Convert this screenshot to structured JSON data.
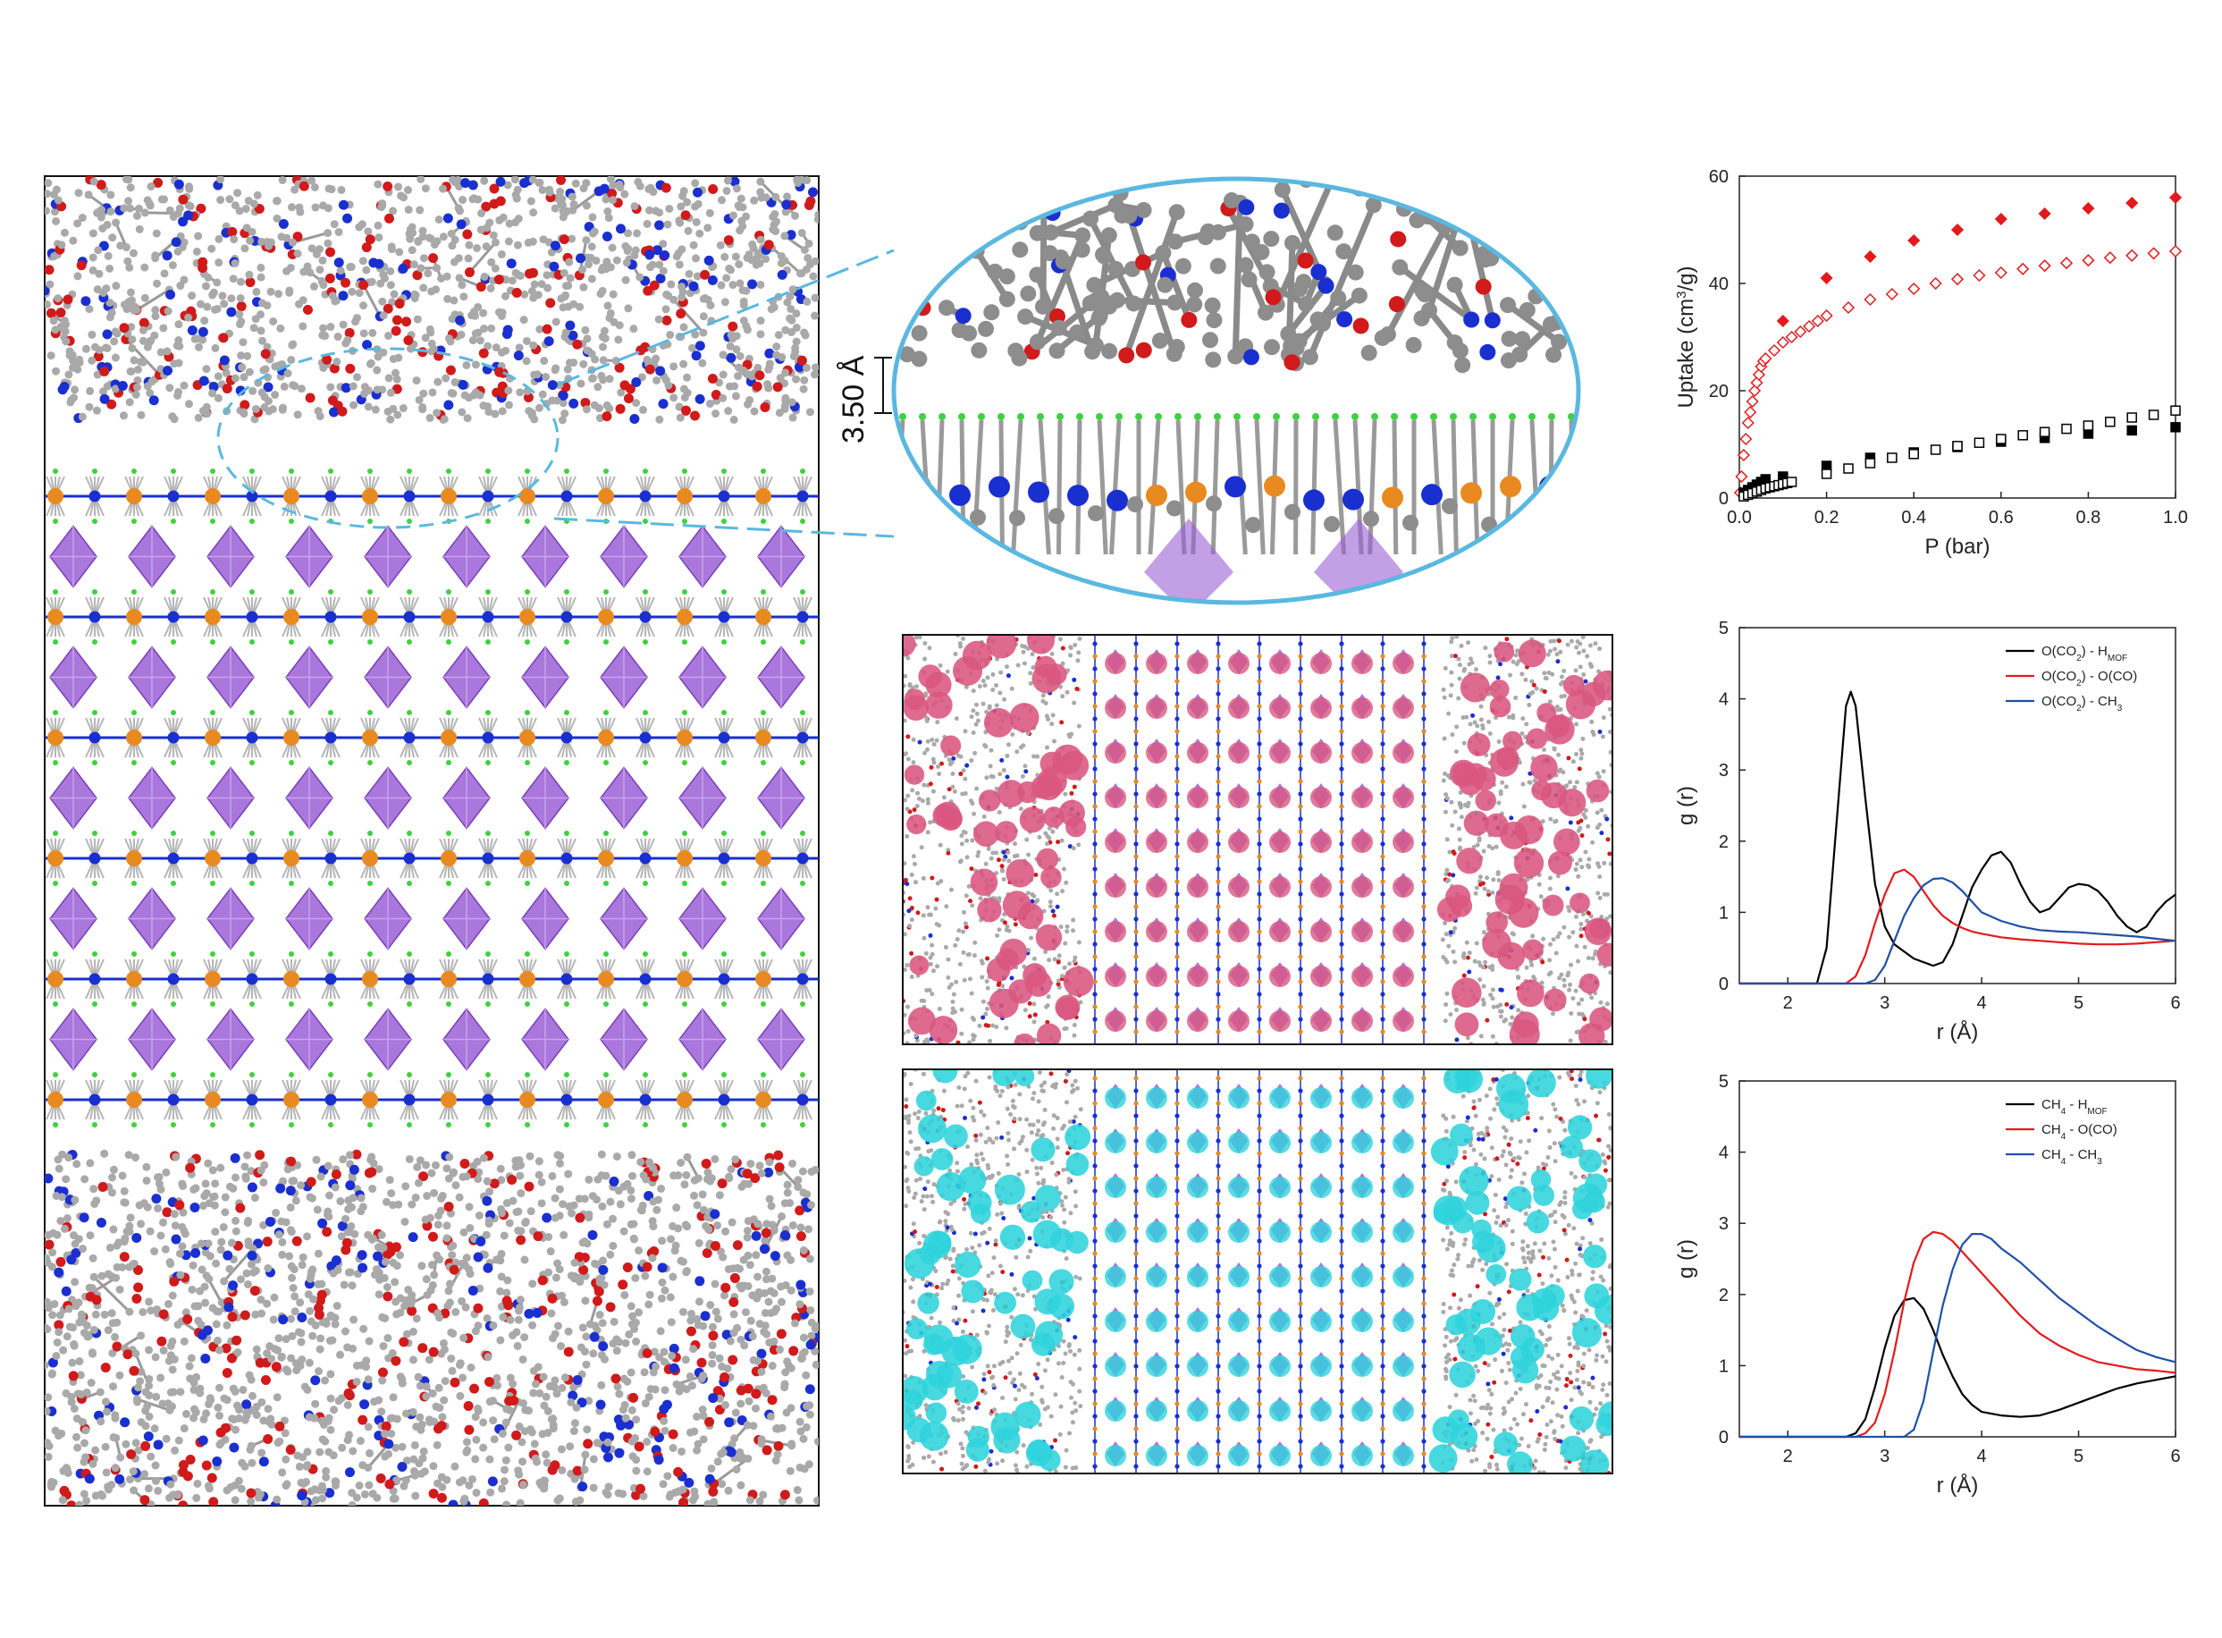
{
  "annotation": {
    "distance_label": "3.50 Å"
  },
  "colors": {
    "carbon": "#a9a9a9",
    "oxygen": "#d11a1a",
    "nitrogen": "#1a2fd0",
    "metal": "#e88a1f",
    "halide": "#3fd13f",
    "octahedron": "#9b5fd6",
    "co2_density": "#d9577f",
    "ch4_density": "#2fd3dc",
    "highlight": "#5ab8e0"
  },
  "chart_data": [
    {
      "type": "scatter",
      "title": "",
      "xlabel": "P (bar)",
      "ylabel": "Uptake (cm³/g)",
      "ylabel_main": "Uptake (cm",
      "ylabel_sup": "3",
      "ylabel_end": "/g)",
      "xlim": [
        0,
        1.0
      ],
      "ylim": [
        0,
        60
      ],
      "xticks": [
        "0.0",
        "0.2",
        "0.4",
        "0.6",
        "0.8",
        "1.0"
      ],
      "yticks": [
        "0",
        "20",
        "40",
        "60"
      ],
      "series": [
        {
          "marker": "filled-diamond",
          "color": "#e31a1c",
          "x": [
            0.1,
            0.2,
            0.3,
            0.4,
            0.5,
            0.6,
            0.7,
            0.8,
            0.9,
            1.0
          ],
          "y": [
            33,
            41,
            45,
            48,
            50,
            52,
            53,
            54,
            55,
            56
          ]
        },
        {
          "marker": "open-diamond",
          "color": "#e31a1c",
          "x": [
            0.002,
            0.005,
            0.01,
            0.015,
            0.02,
            0.025,
            0.03,
            0.035,
            0.04,
            0.045,
            0.05,
            0.055,
            0.06,
            0.08,
            0.1,
            0.12,
            0.14,
            0.16,
            0.18,
            0.2,
            0.25,
            0.3,
            0.35,
            0.4,
            0.45,
            0.5,
            0.55,
            0.6,
            0.65,
            0.7,
            0.75,
            0.8,
            0.85,
            0.9,
            0.95,
            1.0
          ],
          "y": [
            1,
            4,
            8,
            11,
            14,
            16,
            18,
            20,
            21.5,
            23,
            24.5,
            25.5,
            26,
            27.5,
            29,
            30,
            31,
            32,
            33,
            34,
            35.5,
            37,
            38,
            39,
            40,
            40.8,
            41.5,
            42,
            42.7,
            43.3,
            43.8,
            44.3,
            44.8,
            45.2,
            45.6,
            46
          ]
        },
        {
          "marker": "filled-square",
          "color": "#000000",
          "x": [
            0.01,
            0.02,
            0.03,
            0.04,
            0.05,
            0.06,
            0.1,
            0.2,
            0.3,
            0.4,
            0.5,
            0.6,
            0.7,
            0.8,
            0.9,
            1.0
          ],
          "y": [
            1,
            1.5,
            2,
            2.5,
            3,
            3.5,
            4,
            6,
            7.5,
            8.5,
            9.5,
            10.5,
            11.2,
            12,
            12.6,
            13.2
          ]
        },
        {
          "marker": "open-square",
          "color": "#000000",
          "x": [
            0.01,
            0.02,
            0.03,
            0.04,
            0.05,
            0.06,
            0.07,
            0.08,
            0.09,
            0.1,
            0.11,
            0.12,
            0.2,
            0.25,
            0.3,
            0.35,
            0.4,
            0.45,
            0.5,
            0.55,
            0.6,
            0.65,
            0.7,
            0.75,
            0.8,
            0.85,
            0.9,
            0.95,
            1.0
          ],
          "y": [
            0.3,
            0.6,
            0.9,
            1.2,
            1.5,
            1.8,
            2.0,
            2.2,
            2.4,
            2.6,
            2.8,
            3.0,
            4.5,
            5.5,
            6.5,
            7.5,
            8.2,
            9,
            9.7,
            10.3,
            11,
            11.7,
            12.3,
            12.9,
            13.5,
            14.2,
            15,
            15.5,
            16.3
          ]
        }
      ]
    },
    {
      "type": "line",
      "xlabel": "r (Å)",
      "ylabel": "g (r)",
      "xlim": [
        1.5,
        6
      ],
      "ylim": [
        0,
        5
      ],
      "xticks": [
        "2",
        "3",
        "4",
        "5",
        "6"
      ],
      "yticks": [
        "0",
        "1",
        "2",
        "3",
        "4",
        "5"
      ],
      "series": [
        {
          "name": "O(CO2) - HMOF",
          "label_main": "O(CO",
          "label_sub": "2",
          "label_mid": ") - H",
          "label_sub2": "MOF",
          "label_end": "",
          "color": "#000000",
          "x": [
            1.5,
            2.3,
            2.4,
            2.5,
            2.6,
            2.65,
            2.7,
            2.8,
            2.9,
            3.0,
            3.1,
            3.2,
            3.3,
            3.4,
            3.5,
            3.6,
            3.7,
            3.8,
            3.9,
            4.0,
            4.1,
            4.2,
            4.3,
            4.4,
            4.5,
            4.6,
            4.7,
            4.8,
            4.9,
            5.0,
            5.1,
            5.2,
            5.3,
            5.4,
            5.5,
            5.6,
            5.7,
            5.8,
            5.9,
            6.0
          ],
          "y": [
            0,
            0,
            0.5,
            2.2,
            3.9,
            4.1,
            3.9,
            2.6,
            1.4,
            0.8,
            0.55,
            0.45,
            0.35,
            0.3,
            0.25,
            0.3,
            0.55,
            0.95,
            1.35,
            1.6,
            1.8,
            1.85,
            1.7,
            1.4,
            1.15,
            1.0,
            1.05,
            1.2,
            1.35,
            1.4,
            1.38,
            1.3,
            1.15,
            0.95,
            0.8,
            0.72,
            0.8,
            1.0,
            1.15,
            1.25
          ]
        },
        {
          "name": "O(CO2) - O(CO)",
          "label_main": "O(CO",
          "label_sub": "2",
          "label_mid": ") - O(CO)",
          "label_sub2": "",
          "label_end": "",
          "color": "#e31a1c",
          "x": [
            1.5,
            2.6,
            2.7,
            2.8,
            2.9,
            3.0,
            3.1,
            3.2,
            3.3,
            3.4,
            3.5,
            3.6,
            3.7,
            3.8,
            3.9,
            4.0,
            4.2,
            4.4,
            4.6,
            4.8,
            5.0,
            5.2,
            5.4,
            5.6,
            5.8,
            6.0
          ],
          "y": [
            0,
            0,
            0.1,
            0.4,
            0.85,
            1.25,
            1.55,
            1.6,
            1.5,
            1.3,
            1.1,
            0.95,
            0.85,
            0.78,
            0.73,
            0.7,
            0.65,
            0.62,
            0.6,
            0.58,
            0.56,
            0.55,
            0.55,
            0.56,
            0.58,
            0.6
          ]
        },
        {
          "name": "O(CO2) - CH3",
          "label_main": "O(CO",
          "label_sub": "2",
          "label_mid": ") - CH",
          "label_sub2": "3",
          "label_end": "",
          "color": "#1f4fa8",
          "x": [
            1.5,
            2.8,
            2.9,
            3.0,
            3.1,
            3.2,
            3.3,
            3.4,
            3.5,
            3.6,
            3.7,
            3.8,
            3.9,
            4.0,
            4.2,
            4.4,
            4.6,
            4.8,
            5.0,
            5.2,
            5.4,
            5.6,
            5.8,
            6.0
          ],
          "y": [
            0,
            0,
            0.05,
            0.25,
            0.6,
            0.95,
            1.2,
            1.38,
            1.47,
            1.48,
            1.42,
            1.3,
            1.15,
            1.0,
            0.88,
            0.8,
            0.75,
            0.73,
            0.72,
            0.7,
            0.68,
            0.66,
            0.63,
            0.6
          ]
        }
      ]
    },
    {
      "type": "line",
      "xlabel": "r (Å)",
      "ylabel": "g (r)",
      "xlim": [
        1.5,
        6
      ],
      "ylim": [
        0,
        5
      ],
      "xticks": [
        "2",
        "3",
        "4",
        "5",
        "6"
      ],
      "yticks": [
        "0",
        "1",
        "2",
        "3",
        "4",
        "5"
      ],
      "series": [
        {
          "name": "CH4 - HMOF",
          "label_main": "CH",
          "label_sub": "4",
          "label_mid": " - H",
          "label_sub2": "MOF",
          "label_end": "",
          "color": "#000000",
          "x": [
            1.5,
            2.6,
            2.7,
            2.8,
            2.9,
            3.0,
            3.1,
            3.2,
            3.3,
            3.4,
            3.5,
            3.6,
            3.7,
            3.8,
            3.9,
            4.0,
            4.2,
            4.4,
            4.6,
            4.8,
            5.0,
            5.2,
            5.4,
            5.6,
            5.8,
            6.0
          ],
          "y": [
            0,
            0,
            0.05,
            0.25,
            0.7,
            1.25,
            1.7,
            1.92,
            1.95,
            1.8,
            1.5,
            1.15,
            0.85,
            0.6,
            0.45,
            0.35,
            0.3,
            0.28,
            0.3,
            0.38,
            0.48,
            0.58,
            0.68,
            0.75,
            0.8,
            0.85
          ]
        },
        {
          "name": "CH4 - O(CO)",
          "label_main": "CH",
          "label_sub": "4",
          "label_mid": " - O(CO)",
          "label_sub2": "",
          "label_end": "",
          "color": "#e31a1c",
          "x": [
            1.5,
            2.7,
            2.8,
            2.9,
            3.0,
            3.1,
            3.2,
            3.3,
            3.4,
            3.5,
            3.6,
            3.7,
            3.8,
            3.9,
            4.0,
            4.2,
            4.4,
            4.6,
            4.8,
            5.0,
            5.2,
            5.4,
            5.6,
            5.8,
            6.0
          ],
          "y": [
            0,
            0,
            0.05,
            0.2,
            0.6,
            1.2,
            1.9,
            2.45,
            2.78,
            2.88,
            2.85,
            2.75,
            2.6,
            2.45,
            2.3,
            2.0,
            1.7,
            1.45,
            1.28,
            1.15,
            1.05,
            1.0,
            0.95,
            0.93,
            0.9
          ]
        },
        {
          "name": "CH4 - CH3",
          "label_main": "CH",
          "label_sub": "4",
          "label_mid": " - CH",
          "label_sub2": "3",
          "label_end": "",
          "color": "#1f4fa8",
          "x": [
            1.5,
            3.2,
            3.3,
            3.4,
            3.5,
            3.6,
            3.7,
            3.8,
            3.9,
            4.0,
            4.1,
            4.2,
            4.4,
            4.6,
            4.8,
            5.0,
            5.2,
            5.4,
            5.6,
            5.8,
            6.0
          ],
          "y": [
            0,
            0,
            0.1,
            0.5,
            1.2,
            1.85,
            2.35,
            2.7,
            2.85,
            2.85,
            2.78,
            2.65,
            2.45,
            2.2,
            1.95,
            1.75,
            1.55,
            1.38,
            1.22,
            1.12,
            1.05
          ]
        }
      ]
    }
  ]
}
